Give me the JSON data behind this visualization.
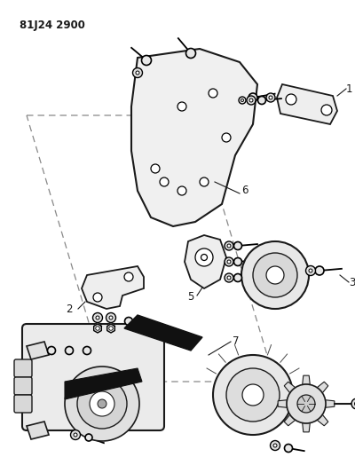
{
  "title": "81J24 2900",
  "background_color": "#ffffff",
  "line_color": "#1a1a1a",
  "fig_width": 4.0,
  "fig_height": 5.33,
  "dpi": 100
}
